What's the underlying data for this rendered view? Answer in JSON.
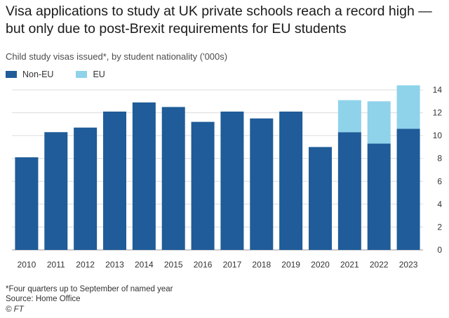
{
  "title": "Visa applications to study at UK private schools reach a record high — but only due to post-Brexit requirements for EU students",
  "subtitle": "Child study visas issued*, by student nationality ('000s)",
  "legend": [
    {
      "label": "Non-EU",
      "color": "#1f5c99"
    },
    {
      "label": "EU",
      "color": "#8fd3ea"
    }
  ],
  "footnote": "*Four quarters up to September of named year",
  "source": "Source: Home Office",
  "credit": "© FT",
  "chart_data": {
    "type": "bar",
    "stacked": true,
    "categories": [
      "2010",
      "2011",
      "2012",
      "2013",
      "2014",
      "2015",
      "2016",
      "2017",
      "2018",
      "2019",
      "2020",
      "2021",
      "2022",
      "2023"
    ],
    "series": [
      {
        "name": "Non-EU",
        "color": "#1f5c99",
        "values": [
          8.1,
          10.3,
          10.7,
          12.1,
          12.9,
          12.5,
          11.2,
          12.1,
          11.5,
          12.1,
          9.0,
          10.3,
          9.3,
          10.6
        ]
      },
      {
        "name": "EU",
        "color": "#8fd3ea",
        "values": [
          0,
          0,
          0,
          0,
          0,
          0,
          0,
          0,
          0,
          0,
          0,
          2.8,
          3.7,
          3.8
        ]
      }
    ],
    "ylim": [
      0,
      14
    ],
    "yticks": [
      0,
      2,
      4,
      6,
      8,
      10,
      12,
      14
    ],
    "y_axis_side": "right",
    "grid": true,
    "legend_position": "top-left"
  }
}
